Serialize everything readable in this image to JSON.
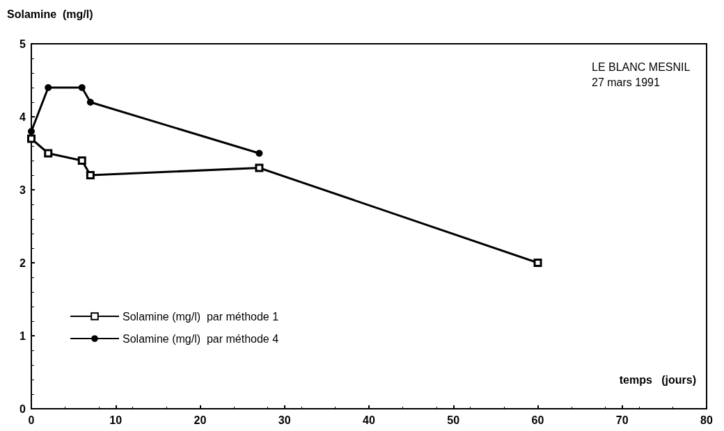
{
  "chart_data": {
    "type": "line",
    "ylabel": "Solamine  (mg/l)",
    "xlabel": "temps   (jours)",
    "annotations": [
      "LE BLANC MESNIL",
      "27 mars 1991"
    ],
    "series": [
      {
        "name": "Solamine (mg/l)  par méthode 1",
        "color": "#000000",
        "marker": "square",
        "x": [
          0,
          2,
          6,
          7,
          27,
          60
        ],
        "values": [
          3.7,
          3.5,
          3.4,
          3.2,
          3.3,
          2.0
        ]
      },
      {
        "name": "Solamine (mg/l)  par méthode 4",
        "color": "#000000",
        "marker": "circle",
        "x": [
          0,
          2,
          6,
          7,
          27
        ],
        "values": [
          3.8,
          4.4,
          4.4,
          4.2,
          3.5
        ]
      }
    ],
    "xlim": [
      0,
      80
    ],
    "xticks": [
      0,
      10,
      20,
      30,
      40,
      50,
      60,
      70,
      80
    ],
    "ylim": [
      0,
      5
    ],
    "yticks": [
      0,
      1,
      2,
      3,
      4,
      5
    ],
    "grid": false,
    "legend": "bottom left",
    "line_style": "solid"
  }
}
